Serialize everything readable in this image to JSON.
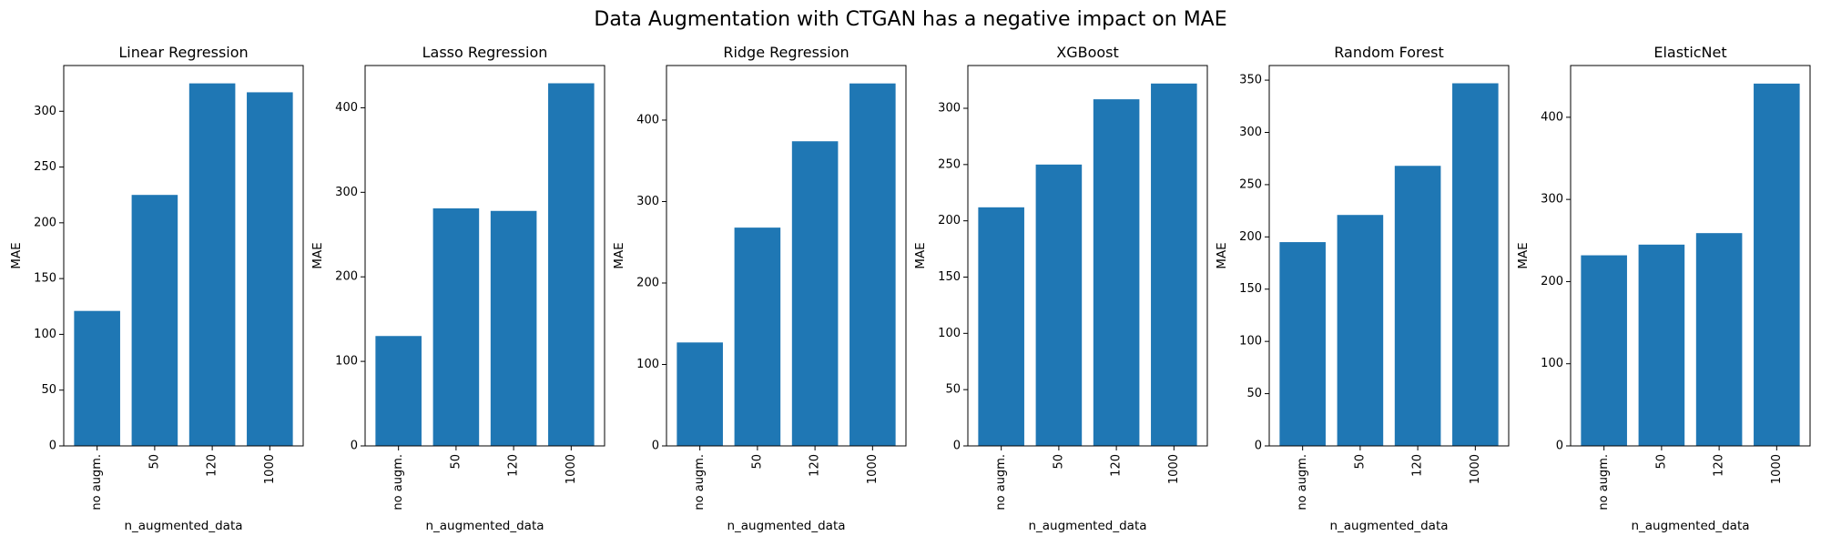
{
  "suptitle": "Data Augmentation with CTGAN has a negative impact on MAE",
  "bar_color": "#1f77b4",
  "chart_data": [
    {
      "type": "bar",
      "title": "Linear Regression",
      "xlabel": "n_augmented_data",
      "ylabel": "MAE",
      "categories": [
        "no augm.",
        "50",
        "120",
        "1000"
      ],
      "values": [
        121,
        225,
        325,
        317
      ],
      "ylim": [
        0,
        341
      ],
      "yticks": [
        0,
        50,
        100,
        150,
        200,
        250,
        300
      ]
    },
    {
      "type": "bar",
      "title": "Lasso Regression",
      "xlabel": "n_augmented_data",
      "ylabel": "MAE",
      "categories": [
        "no augm.",
        "50",
        "120",
        "1000"
      ],
      "values": [
        130,
        281,
        278,
        429
      ],
      "ylim": [
        0,
        450
      ],
      "yticks": [
        0,
        100,
        200,
        300,
        400
      ]
    },
    {
      "type": "bar",
      "title": "Ridge Regression",
      "xlabel": "n_augmented_data",
      "ylabel": "MAE",
      "categories": [
        "no augm.",
        "50",
        "120",
        "1000"
      ],
      "values": [
        127,
        268,
        374,
        445
      ],
      "ylim": [
        0,
        467
      ],
      "yticks": [
        0,
        100,
        200,
        300,
        400
      ]
    },
    {
      "type": "bar",
      "title": "XGBoost",
      "xlabel": "n_augmented_data",
      "ylabel": "MAE",
      "categories": [
        "no augm.",
        "50",
        "120",
        "1000"
      ],
      "values": [
        212,
        250,
        308,
        322
      ],
      "ylim": [
        0,
        338
      ],
      "yticks": [
        0,
        50,
        100,
        150,
        200,
        250,
        300
      ]
    },
    {
      "type": "bar",
      "title": "Random Forest",
      "xlabel": "n_augmented_data",
      "ylabel": "MAE",
      "categories": [
        "no augm.",
        "50",
        "120",
        "1000"
      ],
      "values": [
        195,
        221,
        268,
        347
      ],
      "ylim": [
        0,
        364
      ],
      "yticks": [
        0,
        50,
        100,
        150,
        200,
        250,
        300,
        350
      ]
    },
    {
      "type": "bar",
      "title": "ElasticNet",
      "xlabel": "n_augmented_data",
      "ylabel": "MAE",
      "categories": [
        "no augm.",
        "50",
        "120",
        "1000"
      ],
      "values": [
        232,
        245,
        259,
        441
      ],
      "ylim": [
        0,
        463
      ],
      "yticks": [
        0,
        100,
        200,
        300,
        400
      ]
    }
  ]
}
